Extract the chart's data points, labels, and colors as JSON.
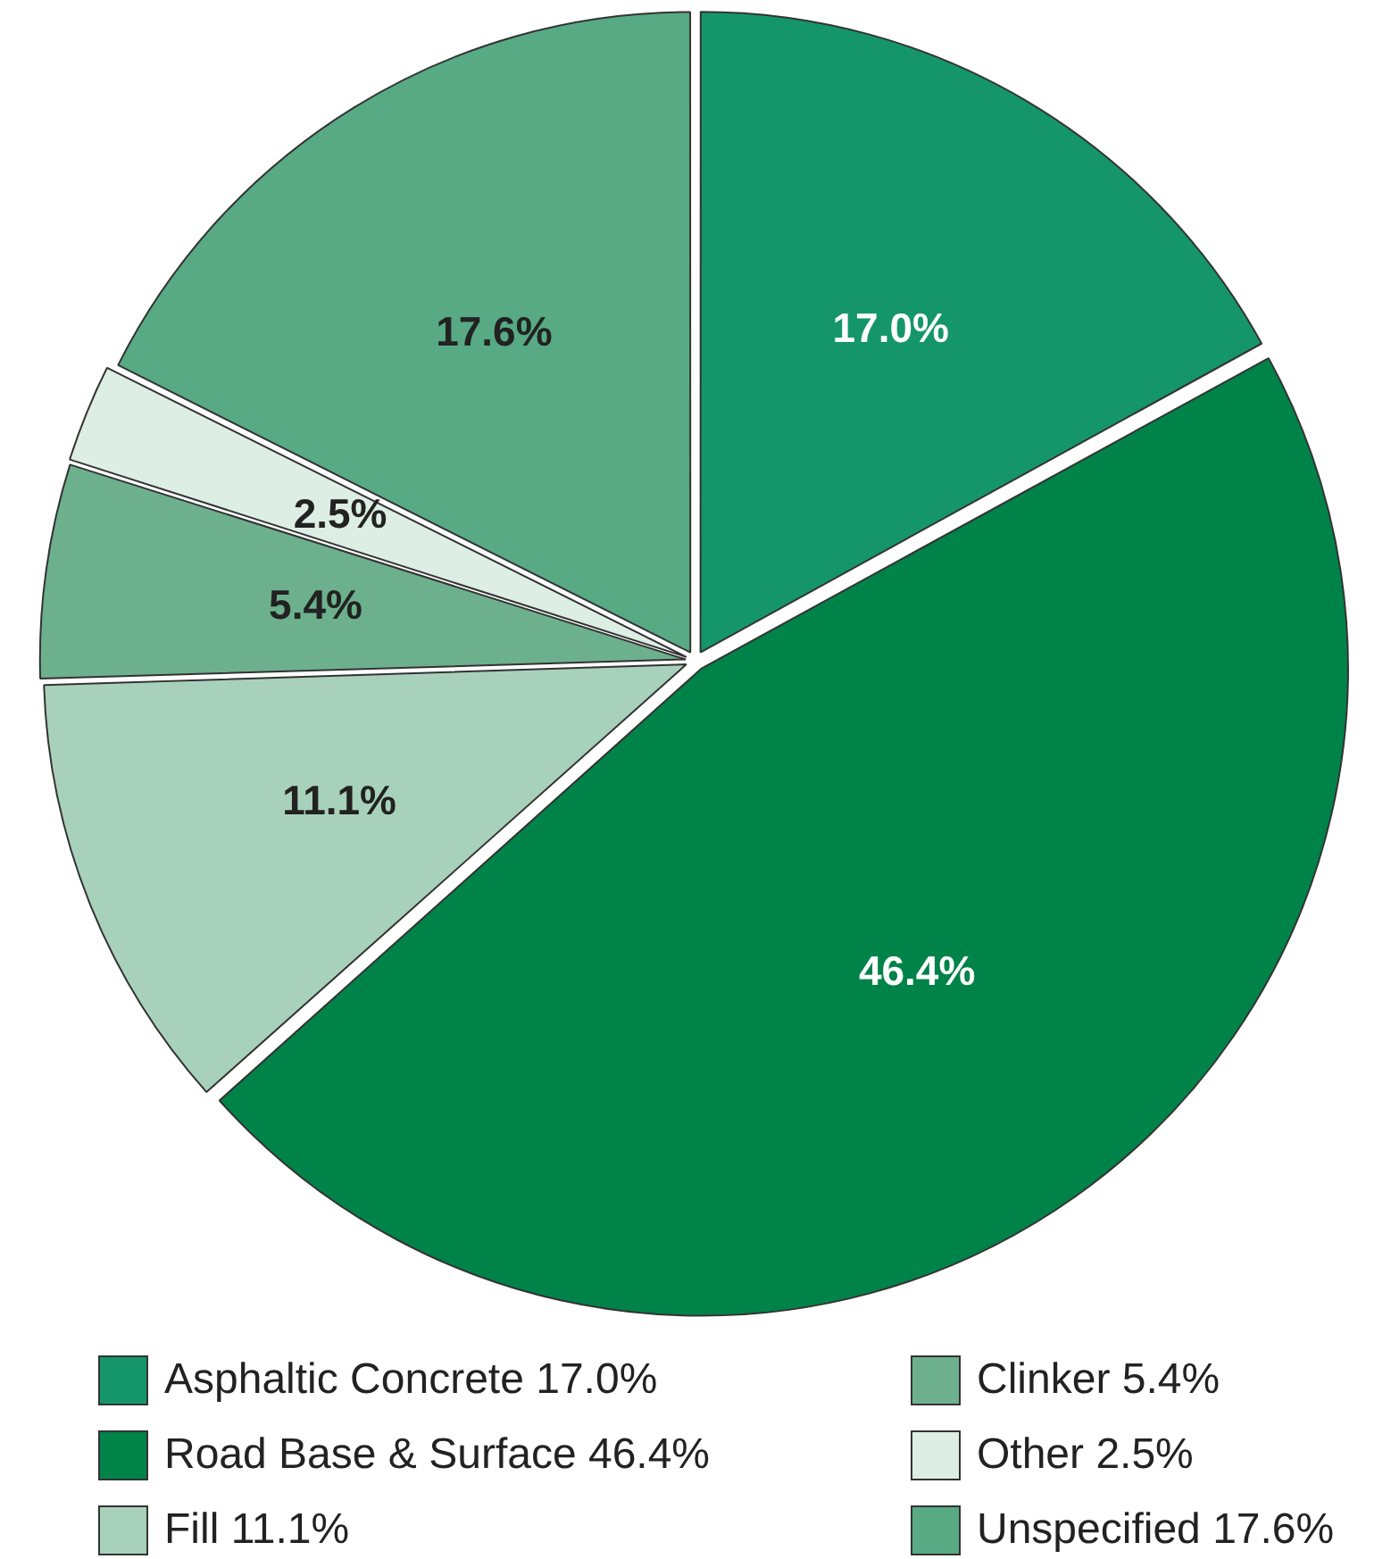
{
  "chart_data": {
    "type": "pie",
    "categories": [
      "Asphaltic Concrete",
      "Road Base & Surface",
      "Fill",
      "Clinker",
      "Other",
      "Unspecified"
    ],
    "values": [
      17.0,
      46.4,
      11.1,
      5.4,
      2.5,
      17.6
    ],
    "colors": [
      "#14966a",
      "#008348",
      "#a8d1bb",
      "#6db08d",
      "#ddeee4",
      "#57aa83"
    ],
    "value_labels": [
      "17.0%",
      "46.4%",
      "11.1%",
      "5.4%",
      "2.5%",
      "17.6%"
    ],
    "legend": "bottom"
  }
}
